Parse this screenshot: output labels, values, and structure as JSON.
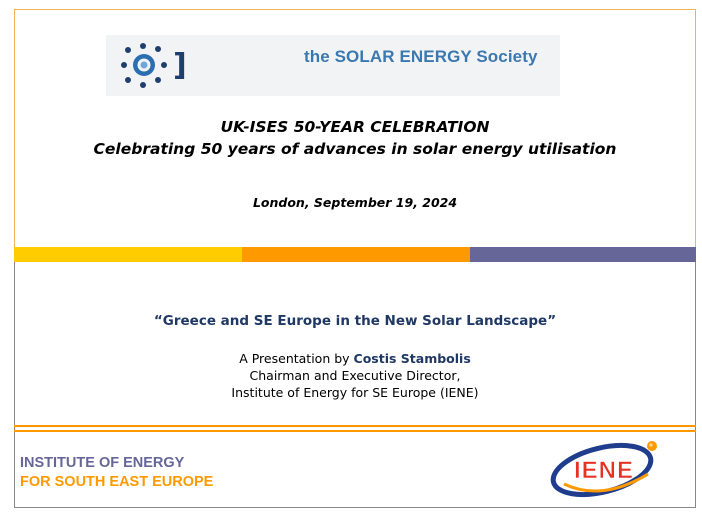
{
  "header": {
    "society_name": "the SOLAR ENERGY Society",
    "logo_icon": "sun-bracket-logo",
    "logo_bracket_text": "]"
  },
  "event": {
    "title_line_1": "UK-ISES 50-YEAR CELEBRATION",
    "title_line_2": "Celebrating 50 years of advances in solar energy utilisation",
    "date": "London, September 19, 2024"
  },
  "presentation": {
    "title": "“Greece and SE Europe in the New Solar Landscape”",
    "by_prefix": "A Presentation by ",
    "presenter_name": "Costis Stambolis",
    "role": "Chairman and Executive Director,",
    "organization": "Institute of Energy for SE Europe (IENE)"
  },
  "footer": {
    "institute_line_1": "INSTITUTE OF ENERGY",
    "institute_line_2": "FOR SOUTH EAST EUROPE",
    "iene_logo_text": "IENE"
  },
  "colors": {
    "bar_yellow": "#ffcc00",
    "bar_orange": "#ff9900",
    "bar_purple": "#666699",
    "navy": "#1f3864",
    "society_blue": "#3b78b0"
  }
}
